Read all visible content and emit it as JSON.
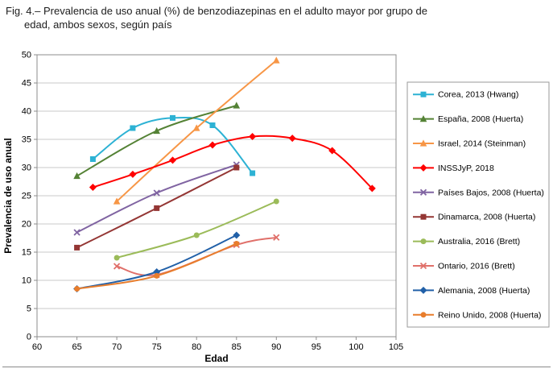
{
  "caption": {
    "line1": "Fig. 4.– Prevalencia de uso anual (%) de benzodiazepinas en el adulto mayor por grupo de",
    "line2": "edad, ambos sexos, según país"
  },
  "chart_data": {
    "type": "line",
    "title": "",
    "xlabel": "Edad",
    "ylabel": "Prevalencia de uso anual",
    "xlim": [
      60,
      105
    ],
    "ylim": [
      0,
      50
    ],
    "xticks": [
      60,
      65,
      70,
      75,
      80,
      85,
      90,
      95,
      100,
      105
    ],
    "yticks": [
      0,
      5,
      10,
      15,
      20,
      25,
      30,
      35,
      40,
      45,
      50
    ],
    "grid": "horizontal",
    "legend_position": "right",
    "line_style": "smooth",
    "colors": {
      "gridline": "#c9c9c9",
      "axis": "#8c8c8c",
      "legend_border": "#9a9a9a"
    },
    "series": [
      {
        "name": "Corea, 2013 (Hwang)",
        "color": "#2db2d4",
        "marker": "square",
        "x": [
          67,
          72,
          77,
          82,
          87
        ],
        "y": [
          31.5,
          37,
          38.8,
          37.5,
          29
        ]
      },
      {
        "name": "España, 2008 (Huerta)",
        "color": "#548235",
        "marker": "triangle",
        "x": [
          65,
          75,
          85
        ],
        "y": [
          28.5,
          36.5,
          41
        ]
      },
      {
        "name": "Israel, 2014 (Steinman)",
        "color": "#f79646",
        "marker": "triangle",
        "x": [
          70,
          80,
          90
        ],
        "y": [
          24,
          37,
          49
        ]
      },
      {
        "name": "INSSJyP, 2018",
        "color": "#ff0000",
        "marker": "diamond",
        "x": [
          67,
          72,
          77,
          82,
          87,
          92,
          97,
          102
        ],
        "y": [
          26.5,
          28.8,
          31.3,
          34,
          35.5,
          35.2,
          33,
          26.3
        ]
      },
      {
        "name": "Países Bajos, 2008 (Huerta)",
        "color": "#8064a2",
        "marker": "x",
        "x": [
          65,
          75,
          85
        ],
        "y": [
          18.5,
          25.5,
          30.5
        ]
      },
      {
        "name": "Dinamarca, 2008 (Huerta)",
        "color": "#943634",
        "marker": "square",
        "x": [
          65,
          75,
          85
        ],
        "y": [
          15.8,
          22.8,
          30
        ]
      },
      {
        "name": "Australia, 2016 (Brett)",
        "color": "#9bbb59",
        "marker": "circle",
        "x": [
          70,
          80,
          90
        ],
        "y": [
          14,
          18,
          24
        ]
      },
      {
        "name": "Ontario, 2016 (Brett)",
        "color": "#e0706a",
        "marker": "x",
        "x": [
          70,
          75,
          85,
          90
        ],
        "y": [
          12.5,
          11,
          16.3,
          17.6
        ]
      },
      {
        "name": "Alemania, 2008 (Huerta)",
        "color": "#2160a8",
        "marker": "diamond",
        "x": [
          65,
          75,
          85
        ],
        "y": [
          8.5,
          11.5,
          18
        ]
      },
      {
        "name": "Reino Unido, 2008 (Huerta)",
        "color": "#e87d2c",
        "marker": "circle",
        "x": [
          65,
          75,
          85
        ],
        "y": [
          8.5,
          10.8,
          16.5
        ]
      }
    ]
  }
}
